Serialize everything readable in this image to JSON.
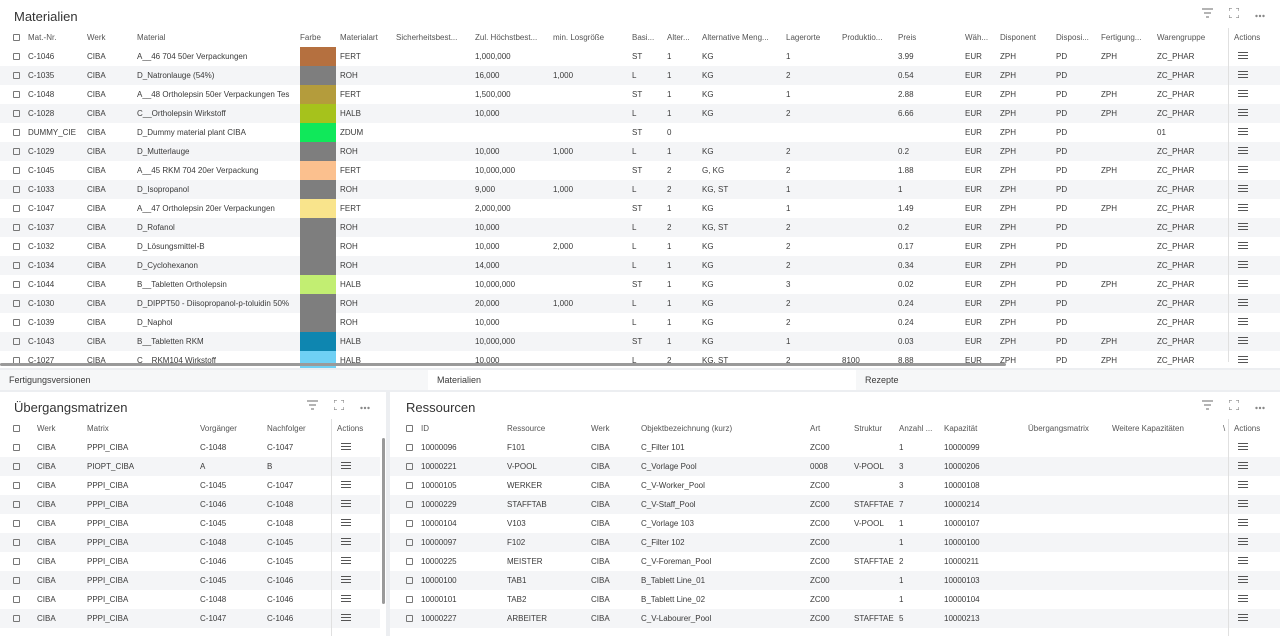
{
  "materialien": {
    "title": "Materialien",
    "columns": [
      "Mat.-Nr.",
      "Werk",
      "Material",
      "Farbe",
      "Materialart",
      "Sicherheitsbest...",
      "Zul. Höchstbest...",
      "min. Losgröße",
      "Basi...",
      "Alter...",
      "Alternative Meng...",
      "Lagerorte",
      "Produktio...",
      "Preis",
      "Wäh...",
      "Disponent",
      "Disposi...",
      "Fertigung...",
      "Warengruppe",
      "Actions"
    ],
    "rows": [
      {
        "nr": "C-1046",
        "werk": "CIBA",
        "material": "A__46 704 50er Verpackungen",
        "color": "#b5703f",
        "art": "FERT",
        "sich": "",
        "hoechst": "1,000,000",
        "los": "",
        "basi": "ST",
        "alter": "1",
        "altm": "KG",
        "lager": "1",
        "prod": "",
        "preis": "3.99",
        "waeh": "EUR",
        "disp": "ZPH",
        "dispo": "PD",
        "fert": "ZPH",
        "waren": "ZC_PHAR"
      },
      {
        "nr": "C-1035",
        "werk": "CIBA",
        "material": "D_Natronlauge (54%)",
        "color": "#7e7e7e",
        "art": "ROH",
        "sich": "",
        "hoechst": "16,000",
        "los": "1,000",
        "basi": "L",
        "alter": "1",
        "altm": "KG",
        "lager": "2",
        "prod": "",
        "preis": "0.54",
        "waeh": "EUR",
        "disp": "ZPH",
        "dispo": "PD",
        "fert": "",
        "waren": "ZC_PHAR"
      },
      {
        "nr": "C-1048",
        "werk": "CIBA",
        "material": "A__48 Ortholepsin 50er Verpackungen Tes",
        "color": "#b49c3c",
        "art": "FERT",
        "sich": "",
        "hoechst": "1,500,000",
        "los": "",
        "basi": "ST",
        "alter": "1",
        "altm": "KG",
        "lager": "1",
        "prod": "",
        "preis": "2.88",
        "waeh": "EUR",
        "disp": "ZPH",
        "dispo": "PD",
        "fert": "ZPH",
        "waren": "ZC_PHAR"
      },
      {
        "nr": "C-1028",
        "werk": "CIBA",
        "material": "C__Ortholepsin Wirkstoff",
        "color": "#a6c21c",
        "art": "HALB",
        "sich": "",
        "hoechst": "10,000",
        "los": "",
        "basi": "L",
        "alter": "1",
        "altm": "KG",
        "lager": "2",
        "prod": "",
        "preis": "6.66",
        "waeh": "EUR",
        "disp": "ZPH",
        "dispo": "PD",
        "fert": "ZPH",
        "waren": "ZC_PHAR"
      },
      {
        "nr": "DUMMY_CIE",
        "werk": "CIBA",
        "material": "D_Dummy material plant CIBA",
        "color": "#10e85a",
        "art": "ZDUM",
        "sich": "",
        "hoechst": "",
        "los": "",
        "basi": "ST",
        "alter": "0",
        "altm": "",
        "lager": "",
        "prod": "",
        "preis": "",
        "waeh": "EUR",
        "disp": "ZPH",
        "dispo": "PD",
        "fert": "",
        "waren": "01"
      },
      {
        "nr": "C-1029",
        "werk": "CIBA",
        "material": "D_Mutterlauge",
        "color": "#7e7e7e",
        "art": "ROH",
        "sich": "",
        "hoechst": "10,000",
        "los": "1,000",
        "basi": "L",
        "alter": "1",
        "altm": "KG",
        "lager": "2",
        "prod": "",
        "preis": "0.2",
        "waeh": "EUR",
        "disp": "ZPH",
        "dispo": "PD",
        "fert": "",
        "waren": "ZC_PHAR"
      },
      {
        "nr": "C-1045",
        "werk": "CIBA",
        "material": "A__45 RKM 704 20er Verpackung",
        "color": "#fbc08e",
        "art": "FERT",
        "sich": "",
        "hoechst": "10,000,000",
        "los": "",
        "basi": "ST",
        "alter": "2",
        "altm": "G, KG",
        "lager": "2",
        "prod": "",
        "preis": "1.88",
        "waeh": "EUR",
        "disp": "ZPH",
        "dispo": "PD",
        "fert": "ZPH",
        "waren": "ZC_PHAR"
      },
      {
        "nr": "C-1033",
        "werk": "CIBA",
        "material": "D_Isopropanol",
        "color": "#7e7e7e",
        "art": "ROH",
        "sich": "",
        "hoechst": "9,000",
        "los": "1,000",
        "basi": "L",
        "alter": "2",
        "altm": "KG, ST",
        "lager": "1",
        "prod": "",
        "preis": "1",
        "waeh": "EUR",
        "disp": "ZPH",
        "dispo": "PD",
        "fert": "",
        "waren": "ZC_PHAR"
      },
      {
        "nr": "C-1047",
        "werk": "CIBA",
        "material": "A__47 Ortholepsin 20er Verpackungen",
        "color": "#f9e48c",
        "art": "FERT",
        "sich": "",
        "hoechst": "2,000,000",
        "los": "",
        "basi": "ST",
        "alter": "1",
        "altm": "KG",
        "lager": "1",
        "prod": "",
        "preis": "1.49",
        "waeh": "EUR",
        "disp": "ZPH",
        "dispo": "PD",
        "fert": "ZPH",
        "waren": "ZC_PHAR"
      },
      {
        "nr": "C-1037",
        "werk": "CIBA",
        "material": "D_Rofanol",
        "color": "#7e7e7e",
        "art": "ROH",
        "sich": "",
        "hoechst": "10,000",
        "los": "",
        "basi": "L",
        "alter": "2",
        "altm": "KG, ST",
        "lager": "2",
        "prod": "",
        "preis": "0.2",
        "waeh": "EUR",
        "disp": "ZPH",
        "dispo": "PD",
        "fert": "",
        "waren": "ZC_PHAR"
      },
      {
        "nr": "C-1032",
        "werk": "CIBA",
        "material": "D_Lösungsmittel-B",
        "color": "#7e7e7e",
        "art": "ROH",
        "sich": "",
        "hoechst": "10,000",
        "los": "2,000",
        "basi": "L",
        "alter": "1",
        "altm": "KG",
        "lager": "2",
        "prod": "",
        "preis": "0.17",
        "waeh": "EUR",
        "disp": "ZPH",
        "dispo": "PD",
        "fert": "",
        "waren": "ZC_PHAR"
      },
      {
        "nr": "C-1034",
        "werk": "CIBA",
        "material": "D_Cyclohexanon",
        "color": "#7e7e7e",
        "art": "ROH",
        "sich": "",
        "hoechst": "14,000",
        "los": "",
        "basi": "L",
        "alter": "1",
        "altm": "KG",
        "lager": "2",
        "prod": "",
        "preis": "0.34",
        "waeh": "EUR",
        "disp": "ZPH",
        "dispo": "PD",
        "fert": "",
        "waren": "ZC_PHAR"
      },
      {
        "nr": "C-1044",
        "werk": "CIBA",
        "material": "B__Tabletten Ortholepsin",
        "color": "#c2ee72",
        "art": "HALB",
        "sich": "",
        "hoechst": "10,000,000",
        "los": "",
        "basi": "ST",
        "alter": "1",
        "altm": "KG",
        "lager": "3",
        "prod": "",
        "preis": "0.02",
        "waeh": "EUR",
        "disp": "ZPH",
        "dispo": "PD",
        "fert": "ZPH",
        "waren": "ZC_PHAR"
      },
      {
        "nr": "C-1030",
        "werk": "CIBA",
        "material": "D_DIPPT50 - Diisopropanol-p-toluidin 50%",
        "color": "#7e7e7e",
        "art": "ROH",
        "sich": "",
        "hoechst": "20,000",
        "los": "1,000",
        "basi": "L",
        "alter": "1",
        "altm": "KG",
        "lager": "2",
        "prod": "",
        "preis": "0.24",
        "waeh": "EUR",
        "disp": "ZPH",
        "dispo": "PD",
        "fert": "",
        "waren": "ZC_PHAR"
      },
      {
        "nr": "C-1039",
        "werk": "CIBA",
        "material": "D_Naphol",
        "color": "#7e7e7e",
        "art": "ROH",
        "sich": "",
        "hoechst": "10,000",
        "los": "",
        "basi": "L",
        "alter": "1",
        "altm": "KG",
        "lager": "2",
        "prod": "",
        "preis": "0.24",
        "waeh": "EUR",
        "disp": "ZPH",
        "dispo": "PD",
        "fert": "",
        "waren": "ZC_PHAR"
      },
      {
        "nr": "C-1043",
        "werk": "CIBA",
        "material": "B__Tabletten RKM",
        "color": "#0e86b0",
        "art": "HALB",
        "sich": "",
        "hoechst": "10,000,000",
        "los": "",
        "basi": "ST",
        "alter": "1",
        "altm": "KG",
        "lager": "1",
        "prod": "",
        "preis": "0.03",
        "waeh": "EUR",
        "disp": "ZPH",
        "dispo": "PD",
        "fert": "ZPH",
        "waren": "ZC_PHAR"
      },
      {
        "nr": "C-1027",
        "werk": "CIBA",
        "material": "C__RKM104 Wirkstoff",
        "color": "#6fd0f4",
        "art": "HALB",
        "sich": "",
        "hoechst": "10,000",
        "los": "",
        "basi": "L",
        "alter": "2",
        "altm": "KG, ST",
        "lager": "2",
        "prod": "8100",
        "preis": "8.88",
        "waeh": "EUR",
        "disp": "ZPH",
        "dispo": "PD",
        "fert": "ZPH",
        "waren": "ZC_PHAR"
      }
    ]
  },
  "tabs": [
    "Fertigungsversionen",
    "Materialien",
    "Rezepte"
  ],
  "uebergang": {
    "title": "Übergangsmatrizen",
    "columns": [
      "Werk",
      "Matrix",
      "Vorgänger",
      "Nachfolger",
      "Actions"
    ],
    "rows": [
      [
        "CIBA",
        "PPPI_CIBA",
        "C-1048",
        "C-1047"
      ],
      [
        "CIBA",
        "PIOPT_CIBA",
        "A",
        "B"
      ],
      [
        "CIBA",
        "PPPI_CIBA",
        "C-1045",
        "C-1047"
      ],
      [
        "CIBA",
        "PPPI_CIBA",
        "C-1046",
        "C-1048"
      ],
      [
        "CIBA",
        "PPPI_CIBA",
        "C-1045",
        "C-1048"
      ],
      [
        "CIBA",
        "PPPI_CIBA",
        "C-1048",
        "C-1045"
      ],
      [
        "CIBA",
        "PPPI_CIBA",
        "C-1046",
        "C-1045"
      ],
      [
        "CIBA",
        "PPPI_CIBA",
        "C-1045",
        "C-1046"
      ],
      [
        "CIBA",
        "PPPI_CIBA",
        "C-1048",
        "C-1046"
      ],
      [
        "CIBA",
        "PPPI_CIBA",
        "C-1047",
        "C-1046"
      ]
    ]
  },
  "ressourcen": {
    "title": "Ressourcen",
    "columns": [
      "ID",
      "Ressource",
      "Werk",
      "Objektbezeichnung (kurz)",
      "Art",
      "Struktur",
      "Anzahl ...",
      "Kapazität",
      "Übergangsmatrix",
      "Weitere Kapazitäten",
      "\\",
      "Actions"
    ],
    "rows": [
      [
        "10000096",
        "F101",
        "CIBA",
        "C_Filter 101",
        "ZC00",
        "",
        "1",
        "10000099"
      ],
      [
        "10000221",
        "V-POOL",
        "CIBA",
        "C_Vorlage Pool",
        "0008",
        "V-POOL",
        "3",
        "10000206"
      ],
      [
        "10000105",
        "WERKER",
        "CIBA",
        "C_V-Worker_Pool",
        "ZC00",
        "",
        "3",
        "10000108"
      ],
      [
        "10000229",
        "STAFFTAB",
        "CIBA",
        "C_V-Staff_Pool",
        "ZC00",
        "STAFFTAE",
        "7",
        "10000214"
      ],
      [
        "10000104",
        "V103",
        "CIBA",
        "C_Vorlage 103",
        "ZC00",
        "V-POOL",
        "1",
        "10000107"
      ],
      [
        "10000097",
        "F102",
        "CIBA",
        "C_Filter 102",
        "ZC00",
        "",
        "1",
        "10000100"
      ],
      [
        "10000225",
        "MEISTER",
        "CIBA",
        "C_V-Foreman_Pool",
        "ZC00",
        "STAFFTAE",
        "2",
        "10000211"
      ],
      [
        "10000100",
        "TAB1",
        "CIBA",
        "B_Tablett Line_01",
        "ZC00",
        "",
        "1",
        "10000103"
      ],
      [
        "10000101",
        "TAB2",
        "CIBA",
        "B_Tablett Line_02",
        "ZC00",
        "",
        "1",
        "10000104"
      ],
      [
        "10000227",
        "ARBEITER",
        "CIBA",
        "C_V-Labourer_Pool",
        "ZC00",
        "STAFFTAE",
        "5",
        "10000213"
      ]
    ]
  }
}
